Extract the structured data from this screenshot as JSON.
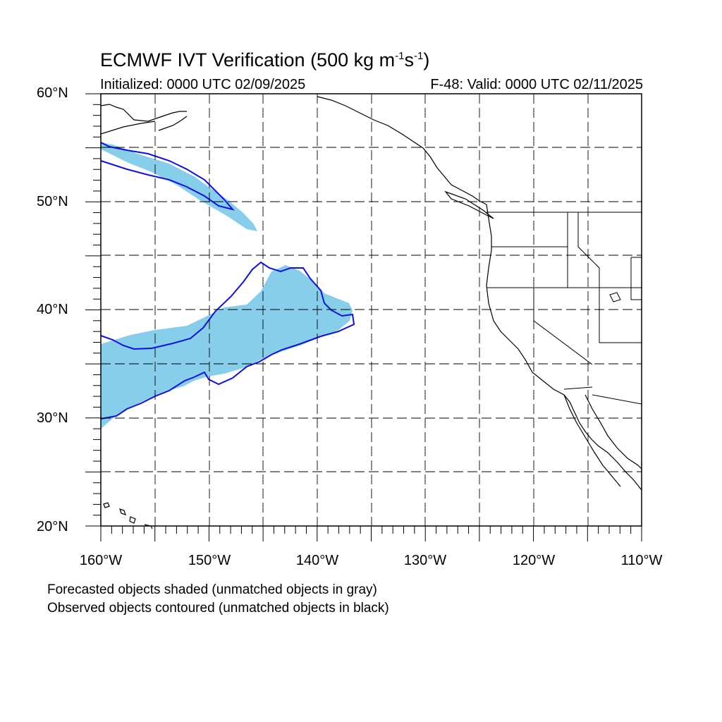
{
  "title": {
    "prefix": "ECMWF IVT Verification (500 kg m",
    "exp1": "-1",
    "mid": "s",
    "exp2": "-1",
    "suffix": ")"
  },
  "initialized": "Initialized: 0000 UTC 02/09/2025",
  "valid": "F-48: Valid: 0000 UTC 02/11/2025",
  "lat_labels": [
    "60°N",
    "50°N",
    "40°N",
    "30°N",
    "20°N"
  ],
  "lon_labels": [
    "160°W",
    "150°W",
    "140°W",
    "130°W",
    "120°W",
    "110°W"
  ],
  "footnotes": [
    "Forecasted objects shaded (unmatched objects in gray)",
    "Observed objects contoured (unmatched objects in black)"
  ],
  "colors": {
    "forecast_fill": "#87ceeb",
    "observed_contour": "#1010e0",
    "coastline": "#000000",
    "grid": "#000000"
  },
  "map": {
    "projection": "cylindrical-equidistant",
    "lon_range": [
      -160,
      -110
    ],
    "lat_range": [
      20,
      60
    ],
    "gridline_interval_deg": 5,
    "gridline_style": "dashed"
  }
}
